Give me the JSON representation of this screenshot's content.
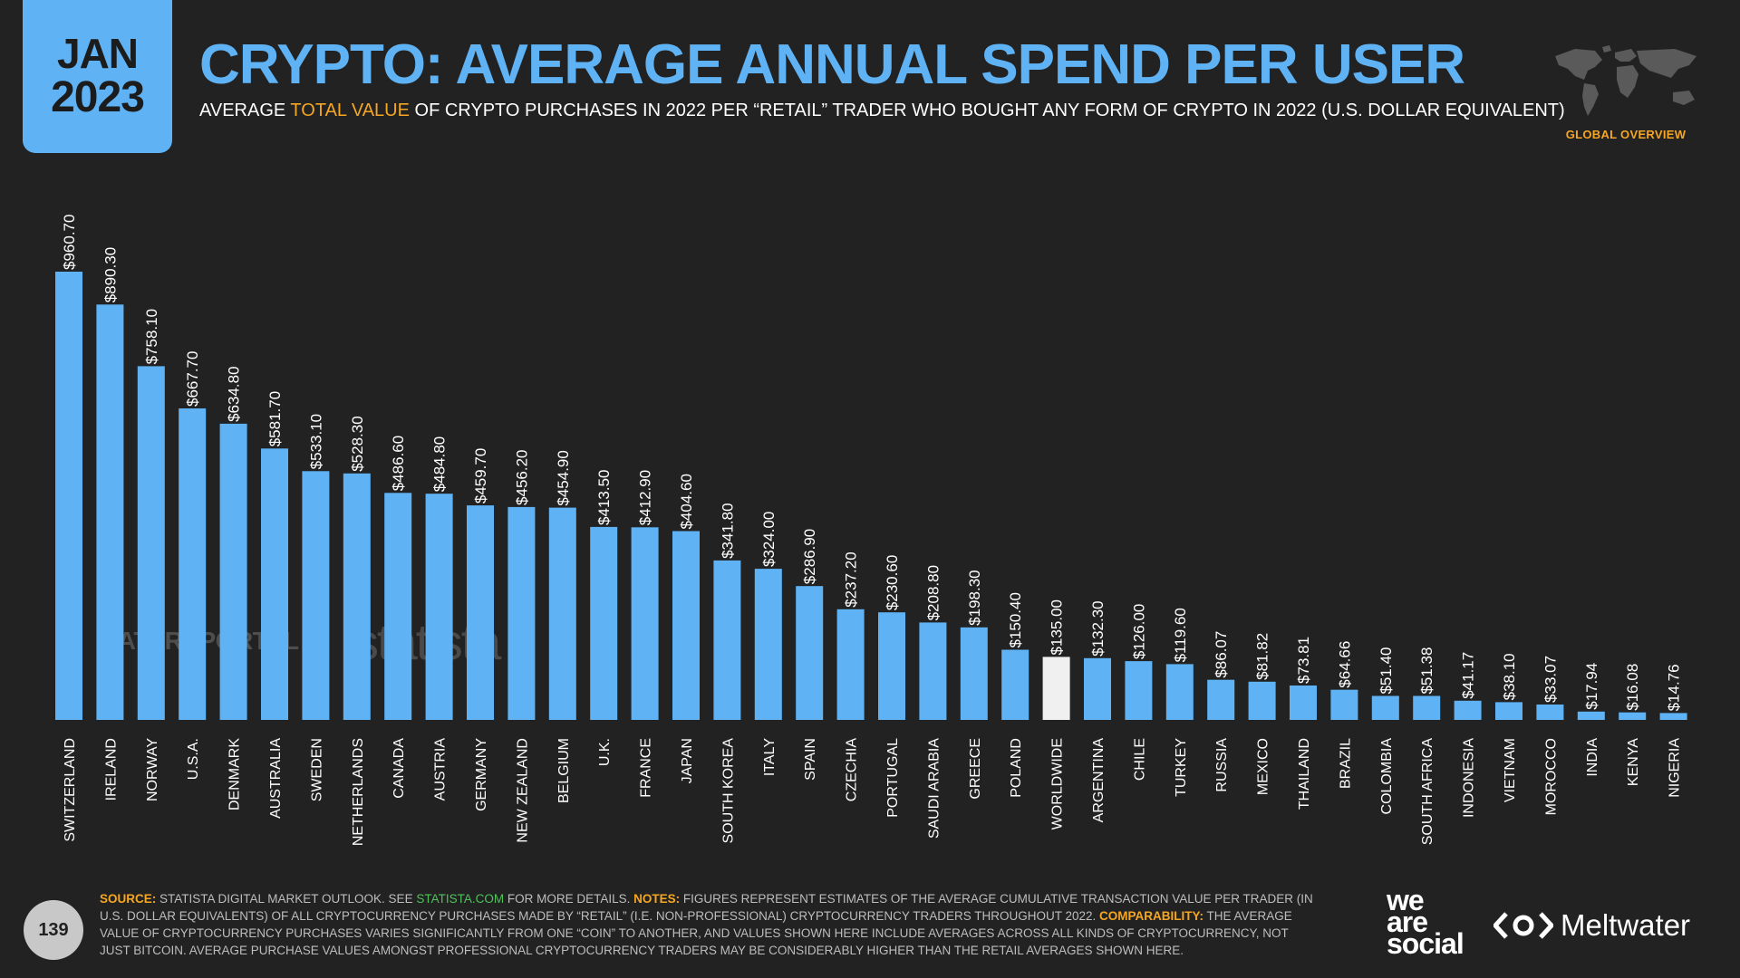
{
  "header": {
    "month": "JAN",
    "year": "2023",
    "title": "CRYPTO: AVERAGE ANNUAL SPEND PER USER",
    "subtitle_pre": "AVERAGE ",
    "subtitle_highlight": "TOTAL VALUE",
    "subtitle_post": " OF CRYPTO PURCHASES IN 2022 PER “RETAIL” TRADER WHO BOUGHT ANY FORM OF CRYPTO IN 2022 (U.S. DOLLAR EQUIVALENT)",
    "global_label": "GLOBAL OVERVIEW"
  },
  "watermarks": {
    "datareportal": "DATAREPORTAL",
    "statista": "statista"
  },
  "colors": {
    "bar": "#5fb3f5",
    "highlight_bar": "#f0f0f0",
    "accent": "#f5a623",
    "background": "#222222"
  },
  "chart_data": {
    "type": "bar",
    "categories": [
      "SWITZERLAND",
      "IRELAND",
      "NORWAY",
      "U.S.A.",
      "DENMARK",
      "AUSTRALIA",
      "SWEDEN",
      "NETHERLANDS",
      "CANADA",
      "AUSTRIA",
      "GERMANY",
      "NEW ZEALAND",
      "BELGIUM",
      "U.K.",
      "FRANCE",
      "JAPAN",
      "SOUTH KOREA",
      "ITALY",
      "SPAIN",
      "CZECHIA",
      "PORTUGAL",
      "SAUDI ARABIA",
      "GREECE",
      "POLAND",
      "WORLDWIDE",
      "ARGENTINA",
      "CHILE",
      "TURKEY",
      "RUSSIA",
      "MEXICO",
      "THAILAND",
      "BRAZIL",
      "COLOMBIA",
      "SOUTH AFRICA",
      "INDONESIA",
      "VIETNAM",
      "MOROCCO",
      "INDIA",
      "KENYA",
      "NIGERIA"
    ],
    "values": [
      960.7,
      890.3,
      758.1,
      667.7,
      634.8,
      581.7,
      533.1,
      528.3,
      486.6,
      484.8,
      459.7,
      456.2,
      454.9,
      413.5,
      412.9,
      404.6,
      341.8,
      324.0,
      286.9,
      237.2,
      230.6,
      208.8,
      198.3,
      150.4,
      135.0,
      132.3,
      126.0,
      119.6,
      86.07,
      81.82,
      73.81,
      64.66,
      51.4,
      51.38,
      41.17,
      38.1,
      33.07,
      17.94,
      16.08,
      14.76
    ],
    "value_labels": [
      "$960.70",
      "$890.30",
      "$758.10",
      "$667.70",
      "$634.80",
      "$581.70",
      "$533.10",
      "$528.30",
      "$486.60",
      "$484.80",
      "$459.70",
      "$456.20",
      "$454.90",
      "$413.50",
      "$412.90",
      "$404.60",
      "$341.80",
      "$324.00",
      "$286.90",
      "$237.20",
      "$230.60",
      "$208.80",
      "$198.30",
      "$150.40",
      "$135.00",
      "$132.30",
      "$126.00",
      "$119.60",
      "$86.07",
      "$81.82",
      "$73.81",
      "$64.66",
      "$51.40",
      "$51.38",
      "$41.17",
      "$38.10",
      "$33.07",
      "$17.94",
      "$16.08",
      "$14.76"
    ],
    "highlight_category": "WORLDWIDE",
    "ylim": [
      0,
      960.7
    ],
    "grid": false
  },
  "footer": {
    "page_number": "139",
    "source_label": "SOURCE:",
    "source_text": " STATISTA DIGITAL MARKET OUTLOOK. SEE ",
    "source_link": "STATISTA.COM",
    "source_post": " FOR MORE DETAILS. ",
    "notes_label": "NOTES:",
    "notes_text": " FIGURES REPRESENT ESTIMATES OF THE AVERAGE CUMULATIVE TRANSACTION VALUE PER TRADER (IN U.S. DOLLAR EQUIVALENTS) OF ALL CRYPTOCURRENCY PURCHASES MADE BY “RETAIL” (I.E. NON-PROFESSIONAL) CRYPTOCURRENCY TRADERS THROUGHOUT 2022. ",
    "comparability_label": "COMPARABILITY:",
    "comparability_text": " THE AVERAGE VALUE OF CRYPTOCURRENCY PURCHASES VARIES SIGNIFICANTLY FROM ONE “COIN” TO ANOTHER, AND VALUES SHOWN HERE INCLUDE AVERAGES ACROSS ALL KINDS OF CRYPTOCURRENCY, NOT JUST BITCOIN. AVERAGE PURCHASE VALUES AMONGST PROFESSIONAL CRYPTOCURRENCY TRADERS MAY BE CONSIDERABLY HIGHER THAN THE RETAIL AVERAGES SHOWN HERE.",
    "logo_we": "we",
    "logo_are": "are",
    "logo_social": "social",
    "meltwater": "Meltwater"
  }
}
